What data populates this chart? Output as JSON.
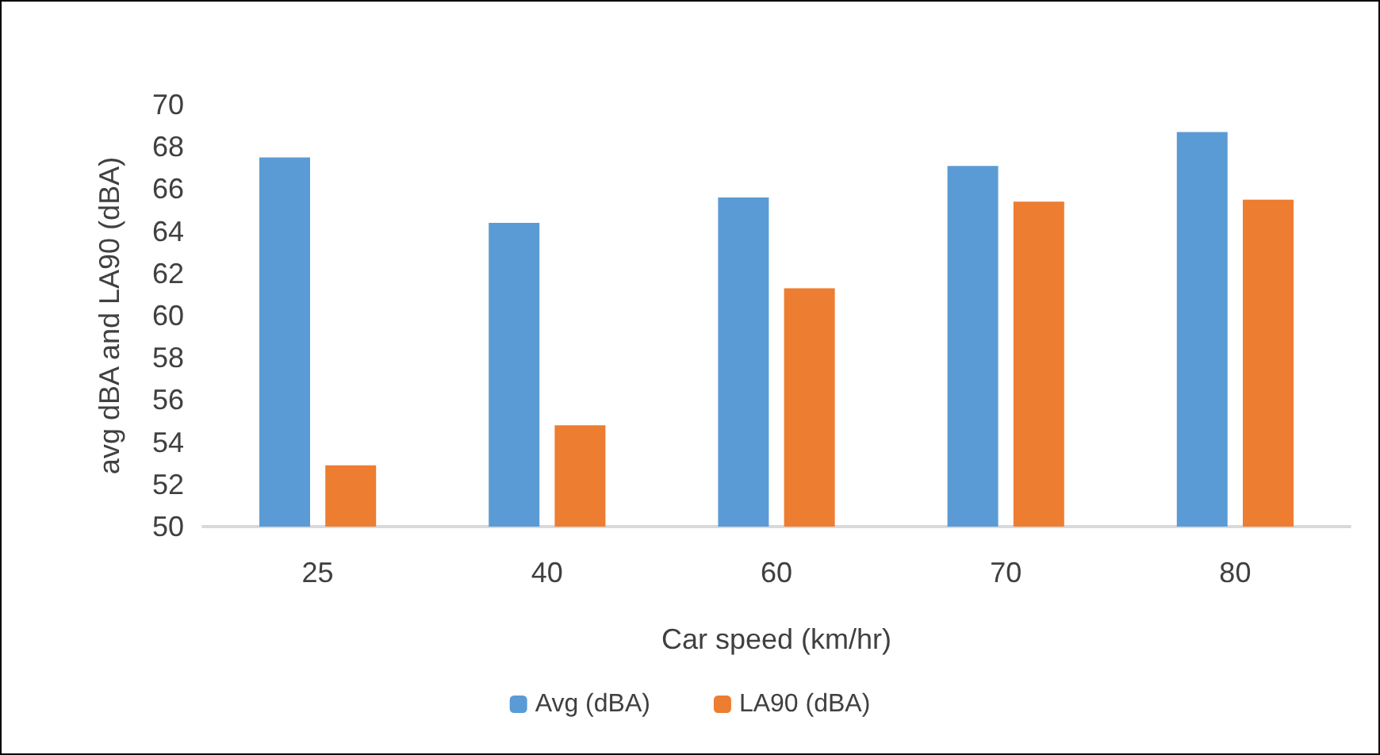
{
  "chart_data": {
    "type": "bar",
    "xlabel": "Car speed (km/hr)",
    "ylabel": "avg dBA and LA90 (dBA)",
    "categories": [
      "25",
      "40",
      "60",
      "70",
      "80"
    ],
    "series": [
      {
        "name": "Avg (dBA)",
        "color": "#5b9bd5",
        "values": [
          67.5,
          64.4,
          65.6,
          67.1,
          68.7
        ]
      },
      {
        "name": "LA90 (dBA)",
        "color": "#ed7d31",
        "values": [
          52.9,
          54.8,
          61.3,
          65.4,
          65.5
        ]
      }
    ],
    "ylim": [
      50,
      70
    ],
    "yticks": [
      50,
      52,
      54,
      56,
      58,
      60,
      62,
      64,
      66,
      68,
      70
    ],
    "grid": false,
    "legend": "bottom"
  }
}
